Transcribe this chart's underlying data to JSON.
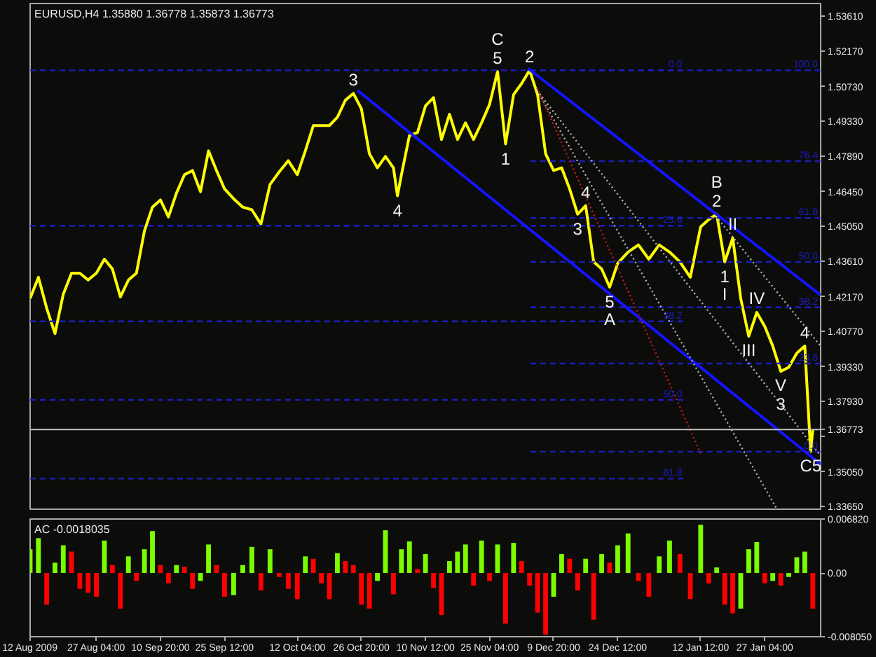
{
  "chart_data": [
    {
      "type": "line",
      "title": "EURUSD,H4  1.35880 1.36778 1.35873 1.36773",
      "tick_labels": "y",
      "xlim": [
        "2009-08-12T00:00",
        "2010-02-08T23:00"
      ],
      "ylim": [
        1.3347,
        1.5412
      ],
      "yticks": [
        {
          "value": 1.5361,
          "label": "1.53610"
        },
        {
          "value": 1.5217,
          "label": "1.52170"
        },
        {
          "value": 1.5073,
          "label": "1.50730"
        },
        {
          "value": 1.4933,
          "label": "1.49330"
        },
        {
          "value": 1.4789,
          "label": "1.47890"
        },
        {
          "value": 1.4645,
          "label": "1.46450"
        },
        {
          "value": 1.4505,
          "label": "1.45050"
        },
        {
          "value": 1.4361,
          "label": "1.43610"
        },
        {
          "value": 1.4217,
          "label": "1.42170"
        },
        {
          "value": 1.4077,
          "label": "1.40770"
        },
        {
          "value": 1.3933,
          "label": "1.39330"
        },
        {
          "value": 1.3793,
          "label": "1.37930"
        },
        {
          "value": 1.3649,
          "label": null
        },
        {
          "value": 1.3505,
          "label": "1.35050"
        },
        {
          "value": 1.3365,
          "label": "1.33650"
        }
      ],
      "series": [
        {
          "color": "#ffff00",
          "x": [
            "2009-08-12T00:00",
            "2009-08-13T21:30",
            "2009-08-15T19:00",
            "2009-08-17T16:30",
            "2009-08-19T14:00",
            "2009-08-21T11:30",
            "2009-08-23T09:00",
            "2009-08-25T06:30",
            "2009-08-27T04:00",
            "2009-08-29T00:00",
            "2009-08-30T20:00",
            "2009-09-01T16:00",
            "2009-09-03T12:00",
            "2009-09-05T08:00",
            "2009-09-07T04:00",
            "2009-09-09T00:00",
            "2009-09-10T20:00",
            "2009-09-12T16:00",
            "2009-09-14T12:00",
            "2009-09-16T08:00",
            "2009-09-18T04:00",
            "2009-09-20T00:00",
            "2009-09-21T20:00",
            "2009-09-23T16:00",
            "2009-09-25T12:00",
            "2009-09-27T14:00",
            "2009-09-29T16:00",
            "2009-10-01T18:00",
            "2009-10-03T20:00",
            "2009-10-05T22:00",
            "2009-10-08T00:00",
            "2009-10-10T02:00",
            "2009-10-12T04:00",
            "2009-10-14T00:00",
            "2009-10-15T20:00",
            "2009-10-17T16:00",
            "2009-10-19T12:00",
            "2009-10-21T08:00",
            "2009-10-23T04:00",
            "2009-10-25T00:00",
            "2009-10-26T20:00",
            "2009-10-28T16:00",
            "2009-10-30T12:00",
            "2009-11-01T08:00",
            "2009-11-03T04:00",
            "2009-11-04T02:00",
            "2009-11-05T00:00",
            "2009-11-06T20:00",
            "2009-11-08T16:00",
            "2009-11-10T12:00",
            "2009-11-12T08:00",
            "2009-11-14T04:00",
            "2009-11-16T00:00",
            "2009-11-17T20:00",
            "2009-11-19T16:00",
            "2009-11-21T12:00",
            "2009-11-23T08:00",
            "2009-11-25T04:00",
            "2009-11-27T00:00",
            "2009-11-28T20:00",
            "2009-11-30T16:00",
            "2009-12-02T12:00",
            "2009-12-04T08:00",
            "2009-12-06T04:00",
            "2009-12-08T00:00",
            "2009-12-09T20:00",
            "2009-12-11T16:00",
            "2009-12-13T12:00",
            "2009-12-15T08:00",
            "2009-12-17T04:00",
            "2009-12-19T00:00",
            "2009-12-20T20:00",
            "2009-12-22T16:00",
            "2009-12-24T12:00",
            "2009-12-26T21:00",
            "2009-12-29T06:00",
            "2009-12-31T15:00",
            "2010-01-03T00:00",
            "2010-01-05T09:00",
            "2010-01-07T18:00",
            "2010-01-10T03:00",
            "2010-01-12T12:00",
            "2010-01-14T08:00",
            "2010-01-16T04:00",
            "2010-01-18T00:00",
            "2010-01-19T20:00",
            "2010-01-21T16:00",
            "2010-01-23T12:00",
            "2010-01-25T08:00",
            "2010-01-27T04:00",
            "2010-01-29T00:00",
            "2010-01-30T20:00",
            "2010-02-01T16:00",
            "2010-02-03T12:00",
            "2010-02-05T08:00",
            "2010-02-06T16:00",
            "2010-02-07T04:00"
          ],
          "values": [
            1.4211,
            1.4297,
            1.4171,
            1.4068,
            1.4228,
            1.4314,
            1.4314,
            1.4286,
            1.4314,
            1.4371,
            1.4331,
            1.4217,
            1.4286,
            1.4314,
            1.4486,
            1.4583,
            1.4612,
            1.4543,
            1.464,
            1.4715,
            1.4732,
            1.4646,
            1.4812,
            1.4732,
            1.4657,
            1.4617,
            1.4583,
            1.4572,
            1.4514,
            1.4675,
            1.4726,
            1.4772,
            1.4715,
            1.4812,
            1.4915,
            1.4915,
            1.4915,
            1.4949,
            1.5018,
            1.5046,
            1.4983,
            1.48,
            1.4743,
            1.4789,
            1.4743,
            1.4629,
            1.4715,
            1.4875,
            1.4886,
            1.4995,
            1.5029,
            1.4858,
            1.4961,
            1.4858,
            1.4926,
            1.4858,
            1.4926,
            1.5001,
            1.5135,
            1.484,
            1.5041,
            1.5086,
            1.514,
            1.5041,
            1.48,
            1.4732,
            1.4743,
            1.4657,
            1.4554,
            1.4589,
            1.436,
            1.4331,
            1.4257,
            1.4354,
            1.44,
            1.4429,
            1.4371,
            1.4429,
            1.44,
            1.436,
            1.4297,
            1.4503,
            1.4532,
            1.4554,
            1.436,
            1.4457,
            1.4211,
            1.4057,
            1.4154,
            1.4097,
            1.4017,
            1.3914,
            1.3931,
            1.3988,
            1.4017,
            1.3587,
            1.3677
          ]
        },
        {
          "name": "0.0",
          "color": "#1c1cc4",
          "line_style": "dashed",
          "x": [
            "2009-08-12T00:00",
            "2010-01-08T22:00"
          ],
          "values": [
            1.514,
            1.514
          ]
        },
        {
          "name": "23.6",
          "color": "#1c1cc4",
          "line_style": "dashed",
          "x": [
            "2009-08-12T00:00",
            "2010-01-08T22:00"
          ],
          "values": [
            1.4507,
            1.4507
          ]
        },
        {
          "name": "38.2",
          "color": "#1c1cc4",
          "line_style": "dashed",
          "x": [
            "2009-08-12T00:00",
            "2010-01-08T22:00"
          ],
          "values": [
            1.4118,
            1.4118
          ]
        },
        {
          "name": "50.0",
          "color": "#1c1cc4",
          "line_style": "dashed",
          "x": [
            "2009-08-12T00:00",
            "2010-01-08T22:00"
          ],
          "values": [
            1.3798,
            1.3798
          ]
        },
        {
          "name": "61.8",
          "color": "#1c1cc4",
          "line_style": "dashed",
          "x": [
            "2009-08-12T00:00",
            "2010-01-08T22:00"
          ],
          "values": [
            1.3477,
            1.3477
          ]
        },
        {
          "name": "100.0",
          "color": "#1c1cc4",
          "line_style": "dashed",
          "x": [
            "2009-12-04T12:00",
            "2010-02-08T23:00"
          ],
          "values": [
            1.514,
            1.514
          ]
        },
        {
          "name": "76.4",
          "color": "#1c1cc4",
          "line_style": "dashed",
          "x": [
            "2009-12-04T12:00",
            "2010-02-08T23:00"
          ],
          "values": [
            1.477,
            1.477
          ]
        },
        {
          "name": "61.8",
          "color": "#1c1cc4",
          "line_style": "dashed",
          "x": [
            "2009-12-04T12:00",
            "2010-02-08T23:00"
          ],
          "values": [
            1.4539,
            1.4539
          ]
        },
        {
          "name": "50.0",
          "color": "#1c1cc4",
          "line_style": "dashed",
          "x": [
            "2009-12-04T12:00",
            "2010-02-08T23:00"
          ],
          "values": [
            1.436,
            1.436
          ]
        },
        {
          "name": "38.2",
          "color": "#1c1cc4",
          "line_style": "dashed",
          "x": [
            "2009-12-04T12:00",
            "2010-02-08T23:00"
          ],
          "values": [
            1.4175,
            1.4175
          ]
        },
        {
          "name": "23.6",
          "color": "#1c1cc4",
          "line_style": "dashed",
          "x": [
            "2009-12-04T12:00",
            "2010-02-08T23:00"
          ],
          "values": [
            1.3946,
            1.3946
          ]
        },
        {
          "name": "0.0",
          "color": "#1c1cc4",
          "line_style": "dashed",
          "x": [
            "2009-12-04T12:00",
            "2010-02-08T23:00"
          ],
          "values": [
            1.3587,
            1.3587
          ]
        },
        {
          "color": "#1414ff",
          "x": [
            "2009-12-03T23:00",
            "2010-02-08T23:00"
          ],
          "values": [
            1.5148,
            1.4225
          ]
        },
        {
          "color": "#1414ff",
          "x": [
            "2009-10-25T23:00",
            "2010-02-08T23:00"
          ],
          "values": [
            1.5058,
            1.3536
          ]
        },
        {
          "color": "#d01818",
          "line_style": "dotted",
          "x": [
            "2009-12-06T01:00",
            "2010-01-12T12:00"
          ],
          "values": [
            1.5068,
            1.358
          ]
        },
        {
          "color": "#b4b4b4",
          "line_style": "dotted",
          "x": [
            "2009-12-06T01:00",
            "2010-02-08T23:00"
          ],
          "values": [
            1.5058,
            1.357
          ]
        },
        {
          "color": "#b4b4b4",
          "line_style": "dotted",
          "x": [
            "2009-12-06T01:00",
            "2010-01-29T23:00"
          ],
          "values": [
            1.5058,
            1.3353
          ]
        },
        {
          "color": "#b4b4b4",
          "line_style": "dotted",
          "x": [
            "2010-01-16T15:00",
            "2010-02-08T23:00"
          ],
          "values": [
            1.4532,
            1.4017
          ]
        }
      ],
      "ref_lines": [
        {
          "axis": "y",
          "value": 1.36773,
          "label": "1.36773",
          "color": "#c0c0c0"
        }
      ],
      "annotations": [
        {
          "text": "3",
          "x": "2009-10-25T00:00",
          "y": 1.5046
        },
        {
          "text": "4",
          "x": "2009-11-04T02:00",
          "y": 1.4629
        },
        {
          "text": "5",
          "x": "2009-11-27T00:00",
          "y": 1.5135
        },
        {
          "text": "C",
          "x": "2009-11-27T00:00",
          "y": 1.5135
        },
        {
          "text": "2",
          "x": "2009-12-04T08:00",
          "y": 1.514
        },
        {
          "text": "1",
          "x": "2009-11-28T20:00",
          "y": 1.484
        },
        {
          "text": "4",
          "x": "2009-12-17T04:00",
          "y": 1.4589
        },
        {
          "text": "3",
          "x": "2009-12-15T08:00",
          "y": 1.4554
        },
        {
          "text": "5",
          "x": "2009-12-22T16:00",
          "y": 1.4257
        },
        {
          "text": "A",
          "x": "2009-12-22T16:00",
          "y": 1.4257
        },
        {
          "text": "2",
          "x": "2010-01-16T04:00",
          "y": 1.4554
        },
        {
          "text": "B",
          "x": "2010-01-16T04:00",
          "y": 1.4554
        },
        {
          "text": "1",
          "x": "2010-01-18T00:00",
          "y": 1.436
        },
        {
          "text": "I",
          "x": "2010-01-18T00:00",
          "y": 1.436
        },
        {
          "text": "II",
          "x": "2010-01-19T20:00",
          "y": 1.4457
        },
        {
          "text": "III",
          "x": "2010-01-23T12:00",
          "y": 1.4057
        },
        {
          "text": "IV",
          "x": "2010-01-25T08:00",
          "y": 1.4154
        },
        {
          "text": "V",
          "x": "2010-01-30T20:00",
          "y": 1.3914
        },
        {
          "text": "3",
          "x": "2010-01-30T20:00",
          "y": 1.3914
        },
        {
          "text": "4",
          "x": "2010-02-05T08:00",
          "y": 1.4017
        },
        {
          "text": "C5",
          "x": "2010-02-06T16:00",
          "y": 1.3587
        }
      ]
    },
    {
      "type": "bar",
      "title": "AC -0.0018035",
      "xlim": [
        "2009-08-12T00:00",
        "2010-02-08T23:00"
      ],
      "xticks": [
        {
          "value": "2009-08-12T00:00",
          "label": "12 Aug 2009"
        },
        {
          "value": "2009-08-27T04:00",
          "label": "27 Aug 04:00"
        },
        {
          "value": "2009-09-10T20:00",
          "label": "10 Sep 20:00"
        },
        {
          "value": "2009-09-25T12:00",
          "label": "25 Sep 12:00"
        },
        {
          "value": "2009-10-12T04:00",
          "label": "12 Oct 04:00"
        },
        {
          "value": "2009-10-26T20:00",
          "label": "26 Oct 20:00"
        },
        {
          "value": "2009-11-10T12:00",
          "label": "10 Nov 12:00"
        },
        {
          "value": "2009-11-25T04:00",
          "label": "25 Nov 04:00"
        },
        {
          "value": "2009-12-09T20:00",
          "label": "9 Dec 20:00"
        },
        {
          "value": "2009-12-24T12:00",
          "label": "24 Dec 12:00"
        },
        {
          "value": "2010-01-12T12:00",
          "label": "12 Jan 12:00"
        },
        {
          "value": "2010-01-27T04:00",
          "label": "27 Jan 04:00"
        }
      ],
      "ylim": [
        -0.00805,
        0.00682
      ],
      "yticks": [
        {
          "value": 0.00682,
          "label": "0.006820"
        },
        {
          "value": 0,
          "label": "0.00"
        },
        {
          "value": -0.00805,
          "label": "-0.008050"
        }
      ],
      "x": [
        "2009-08-12T00:00",
        "2009-08-13T21:30",
        "2009-08-15T19:00",
        "2009-08-17T16:30",
        "2009-08-19T14:00",
        "2009-08-21T11:30",
        "2009-08-23T09:00",
        "2009-08-25T06:30",
        "2009-08-27T04:00",
        "2009-08-29T00:00",
        "2009-08-30T20:00",
        "2009-09-01T16:00",
        "2009-09-03T12:00",
        "2009-09-05T08:00",
        "2009-09-07T04:00",
        "2009-09-09T00:00",
        "2009-09-10T20:00",
        "2009-09-12T16:00",
        "2009-09-14T12:00",
        "2009-09-16T08:00",
        "2009-09-18T04:00",
        "2009-09-20T00:00",
        "2009-09-21T20:00",
        "2009-09-23T16:00",
        "2009-09-25T12:00",
        "2009-09-27T14:00",
        "2009-09-29T16:00",
        "2009-10-01T18:00",
        "2009-10-03T20:00",
        "2009-10-05T22:00",
        "2009-10-08T00:00",
        "2009-10-10T02:00",
        "2009-10-12T04:00",
        "2009-10-14T00:00",
        "2009-10-15T20:00",
        "2009-10-17T16:00",
        "2009-10-19T12:00",
        "2009-10-21T08:00",
        "2009-10-23T04:00",
        "2009-10-25T00:00",
        "2009-10-26T20:00",
        "2009-10-28T16:00",
        "2009-10-30T12:00",
        "2009-11-01T08:00",
        "2009-11-03T04:00",
        "2009-11-05T00:00",
        "2009-11-06T20:00",
        "2009-11-08T16:00",
        "2009-11-10T12:00",
        "2009-11-12T08:00",
        "2009-11-14T04:00",
        "2009-11-16T00:00",
        "2009-11-17T20:00",
        "2009-11-19T16:00",
        "2009-11-21T12:00",
        "2009-11-23T08:00",
        "2009-11-25T04:00",
        "2009-11-27T00:00",
        "2009-11-28T20:00",
        "2009-11-30T16:00",
        "2009-12-02T12:00",
        "2009-12-04T08:00",
        "2009-12-06T04:00",
        "2009-12-08T00:00",
        "2009-12-09T20:00",
        "2009-12-11T16:00",
        "2009-12-13T12:00",
        "2009-12-15T08:00",
        "2009-12-17T04:00",
        "2009-12-19T00:00",
        "2009-12-20T20:00",
        "2009-12-22T16:00",
        "2009-12-24T12:00",
        "2009-12-26T21:00",
        "2009-12-29T06:00",
        "2009-12-31T15:00",
        "2010-01-03T00:00",
        "2010-01-05T09:00",
        "2010-01-07T18:00",
        "2010-01-10T03:00",
        "2010-01-12T12:00",
        "2010-01-14T08:00",
        "2010-01-16T04:00",
        "2010-01-18T00:00",
        "2010-01-19T20:00",
        "2010-01-21T16:00",
        "2010-01-23T12:00",
        "2010-01-25T08:00",
        "2010-01-27T04:00",
        "2010-01-29T00:00",
        "2010-01-30T20:00",
        "2010-02-01T16:00",
        "2010-02-03T12:00",
        "2010-02-05T08:00",
        "2010-02-07T04:00"
      ],
      "values": [
        0.003,
        0.0044,
        -0.004,
        0.0013,
        0.0035,
        0.0027,
        -0.002,
        -0.0025,
        -0.003,
        0.0041,
        0.001,
        -0.0045,
        0.0021,
        -0.001,
        0.003,
        0.0053,
        0.001,
        -0.0013,
        0.001,
        0.0008,
        -0.002,
        -0.001,
        0.0036,
        0.001,
        -0.003,
        -0.0028,
        0.001,
        0.0033,
        -0.0022,
        0.003,
        -0.0005,
        -0.002,
        -0.0033,
        0.0021,
        0.0018,
        -0.0013,
        -0.0033,
        0.0025,
        0.0015,
        0.001,
        -0.004,
        -0.0045,
        -0.001,
        0.0054,
        -0.0027,
        0.003,
        0.004,
        0.0005,
        0.0024,
        -0.0019,
        -0.0053,
        0.0015,
        0.0027,
        0.0036,
        -0.0016,
        0.0041,
        -0.001,
        0.0036,
        -0.0064,
        0.0038,
        0.0015,
        -0.0016,
        -0.005,
        -0.0078,
        -0.003,
        0.0024,
        0.0018,
        -0.0022,
        0.0018,
        -0.0059,
        0.0024,
        0.0013,
        0.0035,
        0.005,
        -0.001,
        -0.003,
        0.0021,
        0.0041,
        0.0024,
        -0.0033,
        0.0061,
        -0.0013,
        0.0007,
        -0.004,
        -0.0051,
        -0.0045,
        0.003,
        0.0039,
        -0.0013,
        -0.001,
        -0.0016,
        -0.0005,
        0.002,
        0.0027,
        -0.0045
      ],
      "colors": [
        "#7cfc00",
        "#7cfc00",
        "#ff0000",
        "#7cfc00",
        "#7cfc00",
        "#ff0000",
        "#ff0000",
        "#ff0000",
        "#ff0000",
        "#7cfc00",
        "#ff0000",
        "#ff0000",
        "#7cfc00",
        "#ff0000",
        "#7cfc00",
        "#7cfc00",
        "#ff0000",
        "#ff0000",
        "#7cfc00",
        "#ff0000",
        "#ff0000",
        "#7cfc00",
        "#7cfc00",
        "#ff0000",
        "#ff0000",
        "#7cfc00",
        "#7cfc00",
        "#7cfc00",
        "#ff0000",
        "#7cfc00",
        "#ff0000",
        "#ff0000",
        "#ff0000",
        "#7cfc00",
        "#ff0000",
        "#ff0000",
        "#ff0000",
        "#7cfc00",
        "#ff0000",
        "#ff0000",
        "#ff0000",
        "#ff0000",
        "#7cfc00",
        "#7cfc00",
        "#ff0000",
        "#7cfc00",
        "#7cfc00",
        "#ff0000",
        "#7cfc00",
        "#ff0000",
        "#ff0000",
        "#7cfc00",
        "#7cfc00",
        "#7cfc00",
        "#ff0000",
        "#7cfc00",
        "#ff0000",
        "#7cfc00",
        "#ff0000",
        "#7cfc00",
        "#ff0000",
        "#ff0000",
        "#ff0000",
        "#ff0000",
        "#7cfc00",
        "#7cfc00",
        "#ff0000",
        "#ff0000",
        "#7cfc00",
        "#ff0000",
        "#7cfc00",
        "#ff0000",
        "#7cfc00",
        "#7cfc00",
        "#ff0000",
        "#ff0000",
        "#7cfc00",
        "#7cfc00",
        "#ff0000",
        "#ff0000",
        "#7cfc00",
        "#ff0000",
        "#7cfc00",
        "#ff0000",
        "#ff0000",
        "#7cfc00",
        "#7cfc00",
        "#7cfc00",
        "#ff0000",
        "#7cfc00",
        "#ff0000",
        "#7cfc00",
        "#7cfc00",
        "#7cfc00",
        "#ff0000"
      ]
    }
  ]
}
